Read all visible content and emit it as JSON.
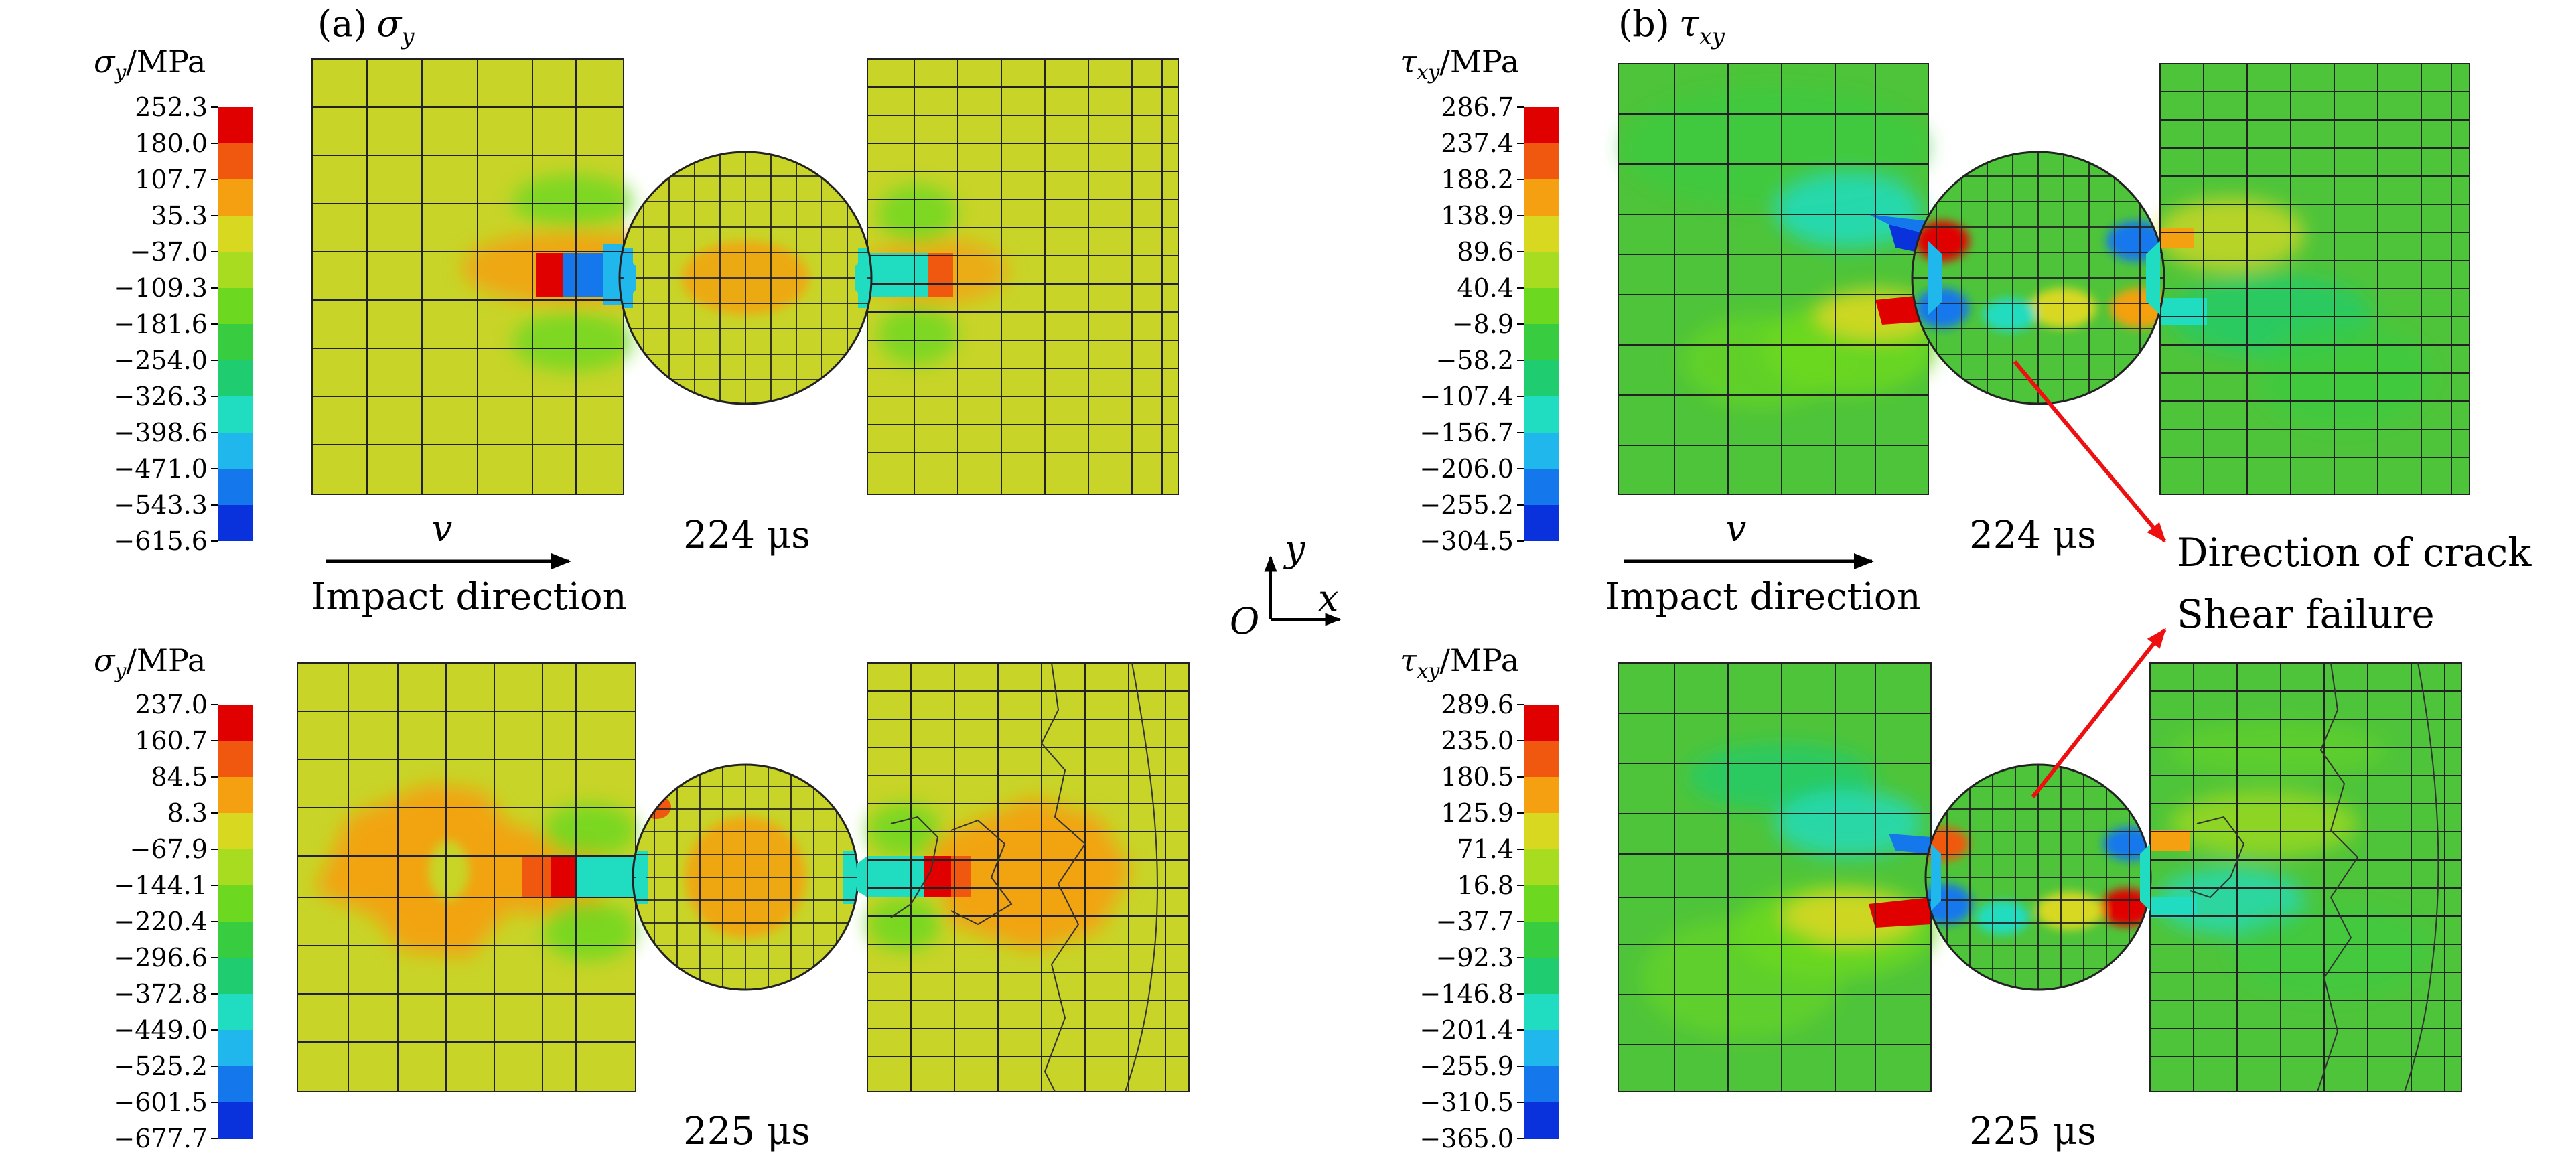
{
  "colorscale": [
    "#e00000",
    "#f05810",
    "#f5a010",
    "#d8d820",
    "#a8dc20",
    "#6cd820",
    "#38cc40",
    "#20cc70",
    "#20dcc0",
    "#20b8ec",
    "#1478ec",
    "#0a32dc"
  ],
  "colors": {
    "plate_yellow": "#c8d428",
    "plate_green": "#4ec43a",
    "arrow_red": "#ee1010"
  },
  "panels": {
    "a": {
      "label_prefix": "(a)",
      "label_sym": "σ",
      "label_sub": "y",
      "unit_sym": "σ",
      "unit_sub": "y",
      "unit_suffix": "/MPa",
      "top": {
        "ticks": [
          "252.3",
          "180.0",
          "107.7",
          "35.3",
          "−37.0",
          "−109.3",
          "−181.6",
          "−254.0",
          "−326.3",
          "−398.6",
          "−471.0",
          "−543.3",
          "−615.6"
        ],
        "time": "224 μs"
      },
      "bottom": {
        "ticks": [
          "237.0",
          "160.7",
          "84.5",
          "8.3",
          "−67.9",
          "−144.1",
          "−220.4",
          "−296.6",
          "−372.8",
          "−449.0",
          "−525.2",
          "−601.5",
          "−677.7"
        ],
        "time": "225 μs"
      },
      "velocity": "v",
      "impact_label": "Impact direction"
    },
    "b": {
      "label_prefix": "(b)",
      "label_sym": "τ",
      "label_sub": "xy",
      "unit_sym": "τ",
      "unit_sub": "xy",
      "unit_suffix": "/MPa",
      "top": {
        "ticks": [
          "286.7",
          "237.4",
          "188.2",
          "138.9",
          "89.6",
          "40.4",
          "−8.9",
          "−58.2",
          "−107.4",
          "−156.7",
          "−206.0",
          "−255.2",
          "−304.5"
        ],
        "time": "224 μs"
      },
      "bottom": {
        "ticks": [
          "289.6",
          "235.0",
          "180.5",
          "125.9",
          "71.4",
          "16.8",
          "−37.7",
          "−92.3",
          "−146.8",
          "−201.4",
          "−255.9",
          "−310.5",
          "−365.0"
        ],
        "time": "225 μs"
      },
      "velocity": "v",
      "impact_label": "Impact direction"
    }
  },
  "axes": {
    "x": "x",
    "y": "y",
    "origin": "O"
  },
  "annotations": {
    "crack": "Direction of crack",
    "shear": "Shear failure"
  }
}
